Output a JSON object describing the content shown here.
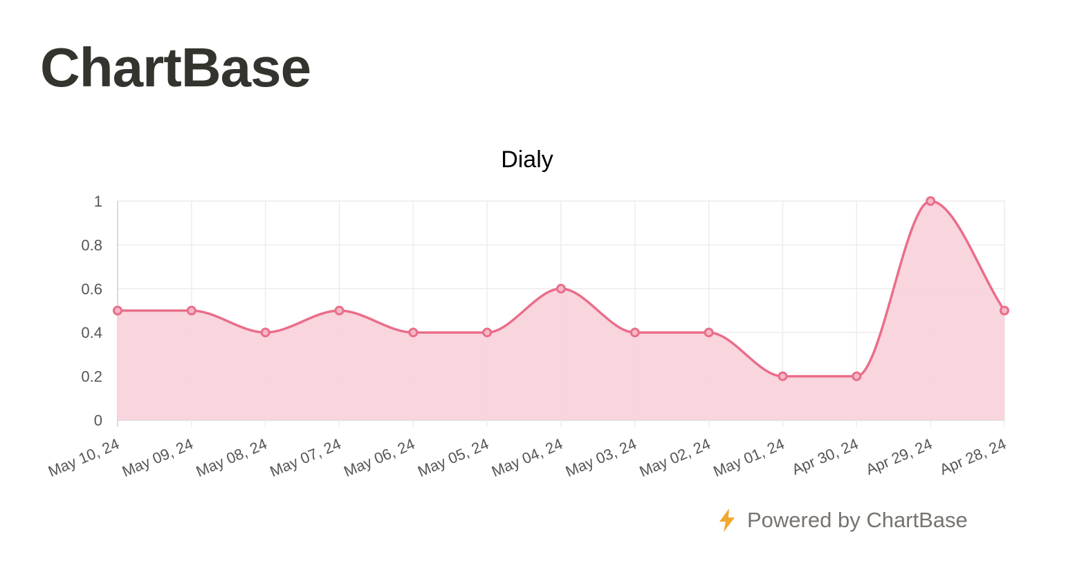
{
  "brand": {
    "name": "ChartBase"
  },
  "footer": {
    "powered_by": "Powered by ChartBase",
    "icon": "lightning-icon",
    "icon_color": "#f0a830"
  },
  "chart_data": {
    "type": "line",
    "title": "Dialy",
    "xlabel": "",
    "ylabel": "",
    "categories": [
      "May 10, 24",
      "May 09, 24",
      "May 08, 24",
      "May 07, 24",
      "May 06, 24",
      "May 05, 24",
      "May 04, 24",
      "May 03, 24",
      "May 02, 24",
      "May 01, 24",
      "Apr 30, 24",
      "Apr 29, 24",
      "Apr 28, 24"
    ],
    "series": [
      {
        "values": [
          0.5,
          0.5,
          0.4,
          0.5,
          0.4,
          0.4,
          0.6,
          0.4,
          0.4,
          0.2,
          0.2,
          1.0,
          0.5
        ],
        "color": "#ea6d8a",
        "fill": "#f9d3dc"
      }
    ],
    "ylim": [
      0,
      1
    ],
    "yticks": [
      "0",
      "0.2",
      "0.4",
      "0.6",
      "0.8",
      "1"
    ],
    "grid": true,
    "smooth": true,
    "area_fill": true
  }
}
